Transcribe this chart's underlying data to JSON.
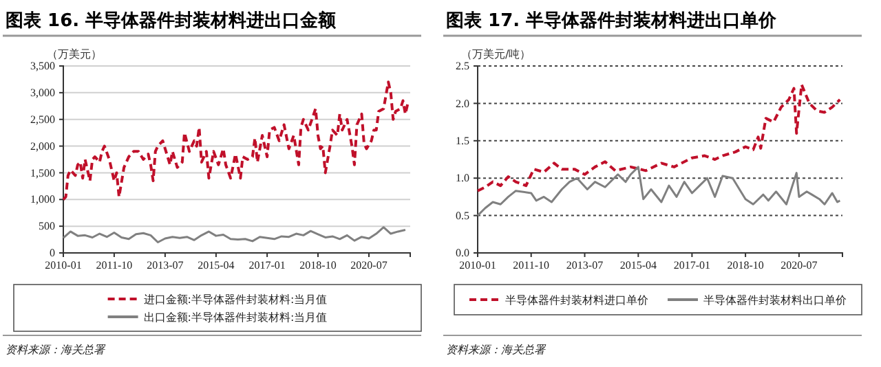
{
  "chart_data": [
    {
      "type": "line",
      "title": "图表 16. 半导体器件封装材料进出口金额",
      "ylabel": "（万美元）",
      "xlim": [
        "2010-01",
        "2021-12"
      ],
      "xticks": [
        "2010-01",
        "2011-10",
        "2013-07",
        "2015-04",
        "2017-01",
        "2018-10",
        "2020-07"
      ],
      "ylim": [
        0,
        3500
      ],
      "yticks": [
        0,
        {
          "value": 500,
          "label": "500"
        },
        {
          "value": 1000,
          "label": "1,000"
        },
        {
          "value": 1500,
          "label": "1,500"
        },
        {
          "value": 2000,
          "label": "2,000"
        },
        {
          "value": 2500,
          "label": "2,500"
        },
        {
          "value": 3000,
          "label": "3,000"
        },
        {
          "value": 3500,
          "label": "3,500"
        }
      ],
      "grid": "y",
      "legend": "bottom",
      "series": [
        {
          "name": "进口金额:半导体器件封装材料:当月值",
          "color": "#c0102a",
          "line_style": "dashed",
          "x": [
            "2010-01",
            "2010-02",
            "2010-03",
            "2010-04",
            "2010-06",
            "2010-07",
            "2010-08",
            "2010-09",
            "2010-10",
            "2010-12",
            "2011-01",
            "2011-02",
            "2011-04",
            "2011-05",
            "2011-06",
            "2011-08",
            "2011-10",
            "2011-11",
            "2011-12",
            "2012-02",
            "2012-04",
            "2012-06",
            "2012-08",
            "2012-10",
            "2012-12",
            "2013-01",
            "2013-02",
            "2013-03",
            "2013-04",
            "2013-06",
            "2013-08",
            "2013-09",
            "2013-10",
            "2013-12",
            "2014-02",
            "2014-03",
            "2014-05",
            "2014-07",
            "2014-08",
            "2014-09",
            "2014-10",
            "2014-12",
            "2015-01",
            "2015-03",
            "2015-05",
            "2015-07",
            "2015-08",
            "2015-10",
            "2015-12",
            "2016-02",
            "2016-03",
            "2016-05",
            "2016-07",
            "2016-08",
            "2016-09",
            "2016-11",
            "2017-01",
            "2017-02",
            "2017-04",
            "2017-06",
            "2017-08",
            "2017-10",
            "2017-12",
            "2018-02",
            "2018-03",
            "2018-04",
            "2018-06",
            "2018-09",
            "2018-10",
            "2018-11",
            "2018-12",
            "2019-01",
            "2019-03",
            "2019-04",
            "2019-06",
            "2019-07",
            "2019-08",
            "2019-10",
            "2019-12",
            "2020-01",
            "2020-02",
            "2020-04",
            "2020-05",
            "2020-06",
            "2020-08",
            "2020-09",
            "2020-10",
            "2020-11",
            "2021-01",
            "2021-03",
            "2021-04",
            "2021-05",
            "2021-06",
            "2021-08",
            "2021-09",
            "2021-10",
            "2021-11"
          ],
          "values": [
            1000,
            1050,
            1450,
            1550,
            1450,
            1650,
            1700,
            1400,
            1750,
            1350,
            1750,
            1800,
            1700,
            1900,
            2000,
            1750,
            1350,
            1500,
            1050,
            1600,
            1800,
            1900,
            1900,
            1750,
            1850,
            1650,
            1350,
            1900,
            2000,
            2100,
            1800,
            1650,
            1900,
            1600,
            1700,
            2250,
            1900,
            2100,
            2000,
            2350,
            1700,
            1900,
            1400,
            1900,
            1650,
            1950,
            1650,
            1400,
            1850,
            1400,
            1800,
            1750,
            1800,
            2150,
            1700,
            2200,
            1800,
            2300,
            2350,
            2100,
            2400,
            1950,
            2200,
            1650,
            2350,
            2500,
            2300,
            2700,
            2200,
            1950,
            2000,
            1500,
            2000,
            2300,
            2200,
            2600,
            2300,
            2500,
            2000,
            1650,
            2400,
            2600,
            2050,
            1950,
            2100,
            2300,
            2300,
            2650,
            2700,
            3200,
            3000,
            2500,
            2650,
            2700,
            2850,
            2600,
            2800
          ]
        },
        {
          "name": "出口金额:半导体器件封装材料:当月值",
          "color": "#808080",
          "line_style": "solid",
          "x": [
            "2010-01",
            "2010-04",
            "2010-07",
            "2010-10",
            "2011-01",
            "2011-04",
            "2011-07",
            "2011-10",
            "2012-01",
            "2012-04",
            "2012-07",
            "2012-10",
            "2013-01",
            "2013-04",
            "2013-07",
            "2013-10",
            "2014-01",
            "2014-04",
            "2014-07",
            "2014-10",
            "2015-01",
            "2015-04",
            "2015-07",
            "2015-10",
            "2016-01",
            "2016-04",
            "2016-07",
            "2016-10",
            "2017-01",
            "2017-04",
            "2017-07",
            "2017-10",
            "2018-01",
            "2018-04",
            "2018-07",
            "2018-10",
            "2019-01",
            "2019-04",
            "2019-07",
            "2019-10",
            "2020-01",
            "2020-04",
            "2020-07",
            "2020-10",
            "2021-01",
            "2021-04",
            "2021-07",
            "2021-10"
          ],
          "values": [
            280,
            400,
            320,
            330,
            290,
            360,
            300,
            380,
            290,
            260,
            350,
            370,
            330,
            200,
            270,
            300,
            280,
            300,
            240,
            330,
            400,
            320,
            340,
            260,
            250,
            260,
            220,
            300,
            280,
            260,
            310,
            300,
            360,
            330,
            410,
            350,
            290,
            310,
            260,
            330,
            230,
            300,
            270,
            360,
            480,
            360,
            400,
            430
          ]
        }
      ],
      "annotations": [
        "资料来源：海关总署"
      ]
    },
    {
      "type": "line",
      "title": "图表 17. 半导体器件封装材料进出口单价",
      "ylabel": "（万美元/吨）",
      "xlim": [
        "2010-01",
        "2021-12"
      ],
      "xticks": [
        "2010-01",
        "2011-10",
        "2013-07",
        "2015-04",
        "2017-01",
        "2018-10",
        "2020-07"
      ],
      "ylim": [
        0,
        2.5
      ],
      "yticks": [
        {
          "value": 0,
          "label": "0.0"
        },
        0.5,
        {
          "value": 1,
          "label": "1.0"
        },
        1.5,
        {
          "value": 2,
          "label": "2.0"
        },
        2.5
      ],
      "grid": "y",
      "legend": "bottom",
      "series": [
        {
          "name": "半导体器件封装材料进口单价",
          "color": "#c0102a",
          "line_style": "dashed",
          "x": [
            "2010-01",
            "2010-04",
            "2010-07",
            "2010-10",
            "2011-01",
            "2011-04",
            "2011-08",
            "2011-11",
            "2012-03",
            "2012-07",
            "2012-10",
            "2013-03",
            "2013-07",
            "2013-11",
            "2014-03",
            "2014-07",
            "2015-01",
            "2015-07",
            "2016-01",
            "2016-06",
            "2017-01",
            "2017-06",
            "2017-10",
            "2018-01",
            "2018-06",
            "2018-10",
            "2019-01",
            "2019-03",
            "2019-04",
            "2019-06",
            "2019-09",
            "2019-12",
            "2020-03",
            "2020-05",
            "2020-06",
            "2020-08",
            "2020-11",
            "2021-02",
            "2021-05",
            "2021-08",
            "2021-11"
          ],
          "values": [
            0.83,
            0.88,
            0.95,
            0.9,
            1.02,
            0.95,
            0.9,
            1.12,
            1.08,
            1.2,
            1.12,
            1.12,
            1.05,
            1.15,
            1.22,
            1.1,
            1.15,
            1.1,
            1.2,
            1.15,
            1.27,
            1.3,
            1.25,
            1.3,
            1.35,
            1.42,
            1.38,
            1.55,
            1.4,
            1.8,
            1.75,
            1.95,
            2.05,
            2.2,
            1.6,
            2.25,
            2.0,
            1.9,
            1.88,
            1.95,
            2.05
          ]
        },
        {
          "name": "半导体器件封装材料出口单价",
          "color": "#808080",
          "line_style": "solid",
          "x": [
            "2010-01",
            "2010-04",
            "2010-07",
            "2010-10",
            "2011-01",
            "2011-04",
            "2011-10",
            "2011-12",
            "2012-03",
            "2012-06",
            "2012-10",
            "2013-01",
            "2013-04",
            "2013-08",
            "2013-11",
            "2014-03",
            "2014-08",
            "2014-11",
            "2015-01",
            "2015-04",
            "2015-06",
            "2015-09",
            "2016-01",
            "2016-04",
            "2016-07",
            "2016-10",
            "2017-01",
            "2017-04",
            "2017-07",
            "2017-10",
            "2018-01",
            "2018-05",
            "2018-10",
            "2019-01",
            "2019-05",
            "2019-07",
            "2019-10",
            "2020-02",
            "2020-06",
            "2020-07",
            "2020-10",
            "2020-12",
            "2021-03",
            "2021-05",
            "2021-08",
            "2021-10",
            "2021-11"
          ],
          "values": [
            0.5,
            0.6,
            0.68,
            0.65,
            0.75,
            0.83,
            0.8,
            0.7,
            0.75,
            0.68,
            0.85,
            0.95,
            1.0,
            0.85,
            0.95,
            0.88,
            1.05,
            0.95,
            1.05,
            1.15,
            0.72,
            0.85,
            0.68,
            0.9,
            0.75,
            0.95,
            0.8,
            0.9,
            1.0,
            0.75,
            1.03,
            1.0,
            0.72,
            0.65,
            0.78,
            0.7,
            0.82,
            0.65,
            1.07,
            0.75,
            0.82,
            0.78,
            0.72,
            0.65,
            0.8,
            0.68,
            0.7
          ]
        }
      ],
      "annotations": [
        "资料来源：海关总署"
      ]
    }
  ]
}
